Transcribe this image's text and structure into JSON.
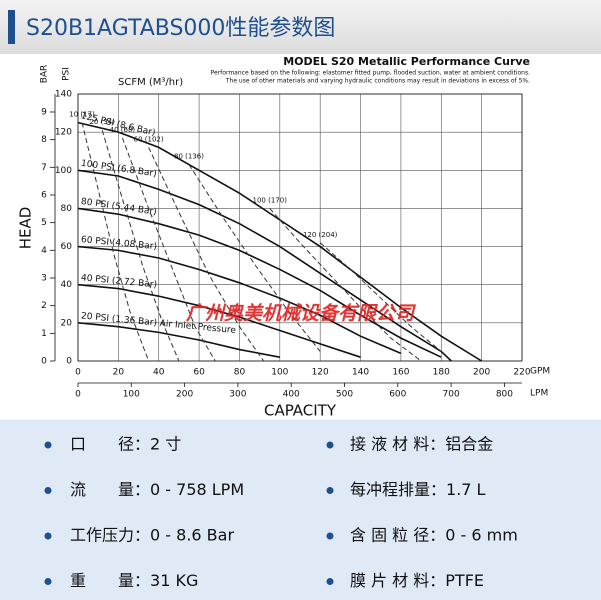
{
  "header": {
    "title": "S20B1AGTABS000性能参数图"
  },
  "chart_data": {
    "type": "line",
    "title": "MODEL S20 Metallic Performance Curve",
    "notes": [
      "Performance based on the following: elastomer fitted pump, flooded suction, water at ambient conditions.",
      "The use of other materials and varying hydraulic conditions may result in deviations in excess of 5%."
    ],
    "xlabel": "CAPACITY",
    "ylabel": "HEAD",
    "x_unit": "GPM",
    "x2_unit": "LPM",
    "y_unit": "PSI",
    "y2_unit": "BAR",
    "air_label": "SCFM (M³/hr)",
    "xlim": [
      0,
      220
    ],
    "xticks": [
      0,
      20,
      40,
      60,
      80,
      100,
      120,
      140,
      160,
      180,
      200,
      220
    ],
    "x2lim": [
      0,
      833
    ],
    "x2ticks": [
      0,
      100,
      200,
      300,
      400,
      500,
      600,
      700,
      800
    ],
    "ylim": [
      0,
      140
    ],
    "yticks": [
      0,
      20,
      40,
      60,
      80,
      100,
      120,
      140
    ],
    "y2lim": [
      0,
      9.65
    ],
    "y2ticks": [
      0,
      1,
      2,
      3,
      4,
      5,
      6,
      7,
      8,
      9
    ],
    "grid": true,
    "watermark": "广州奥美机械设备有限公司",
    "series": [
      {
        "name": "125 PSI (8.6 Bar)",
        "color": "#111111",
        "dash": false,
        "x": [
          0,
          20,
          40,
          60,
          80,
          100,
          120,
          140,
          160,
          180,
          200
        ],
        "values": [
          125,
          120,
          112,
          100,
          88,
          74,
          60,
          44,
          28,
          13,
          0
        ]
      },
      {
        "name": "100 PSI (6.8 Bar)",
        "color": "#111111",
        "dash": false,
        "x": [
          0,
          20,
          40,
          60,
          80,
          100,
          120,
          140,
          160,
          180,
          185
        ],
        "values": [
          100,
          97,
          90,
          82,
          72,
          60,
          46,
          32,
          18,
          5,
          0
        ]
      },
      {
        "name": "80 PSI (5.44 Bar)",
        "color": "#111111",
        "dash": false,
        "x": [
          0,
          20,
          40,
          60,
          80,
          100,
          120,
          140,
          160,
          180
        ],
        "values": [
          80,
          77,
          72,
          66,
          58,
          48,
          37,
          24,
          12,
          2
        ]
      },
      {
        "name": "60 PSI (4.08 Bar)",
        "color": "#111111",
        "dash": false,
        "x": [
          0,
          20,
          40,
          60,
          80,
          100,
          120,
          140,
          160
        ],
        "values": [
          60,
          58,
          54,
          48,
          41,
          33,
          24,
          13,
          4
        ]
      },
      {
        "name": "40 PSI (2.72 Bar)",
        "color": "#111111",
        "dash": false,
        "x": [
          0,
          20,
          40,
          60,
          80,
          100,
          120,
          140
        ],
        "values": [
          40,
          38,
          34,
          29,
          23,
          16,
          9,
          2
        ]
      },
      {
        "name": "20 PSI (1.36 Bar) Air Inlet Pressure",
        "color": "#111111",
        "dash": false,
        "x": [
          0,
          20,
          40,
          60,
          80,
          100
        ],
        "values": [
          20,
          18,
          15,
          11,
          6,
          2
        ]
      },
      {
        "name": "10 (17)",
        "color": "#333333",
        "dash": true,
        "x": [
          2,
          10,
          18,
          26,
          35
        ],
        "values": [
          125,
          90,
          55,
          25,
          0
        ]
      },
      {
        "name": "20 (34)",
        "color": "#333333",
        "dash": true,
        "x": [
          12,
          22,
          32,
          42,
          50
        ],
        "values": [
          121,
          85,
          50,
          20,
          0
        ]
      },
      {
        "name": "40 (68)",
        "color": "#333333",
        "dash": true,
        "x": [
          22,
          35,
          48,
          58,
          68
        ],
        "values": [
          117,
          80,
          45,
          18,
          0
        ]
      },
      {
        "name": "60 (102)",
        "color": "#333333",
        "dash": true,
        "x": [
          35,
          50,
          65,
          80,
          92
        ],
        "values": [
          112,
          78,
          45,
          18,
          0
        ]
      },
      {
        "name": "80 (136)",
        "color": "#333333",
        "dash": true,
        "x": [
          55,
          72,
          88,
          105,
          120
        ],
        "values": [
          103,
          75,
          50,
          25,
          5
        ]
      },
      {
        "name": "100 (170)",
        "color": "#333333",
        "dash": true,
        "x": [
          95,
          110,
          125,
          140,
          155,
          170
        ],
        "values": [
          80,
          62,
          45,
          28,
          12,
          0
        ]
      },
      {
        "name": "120 (204)",
        "color": "#333333",
        "dash": true,
        "x": [
          120,
          135,
          150,
          165,
          180
        ],
        "values": [
          62,
          48,
          33,
          18,
          5
        ]
      }
    ]
  },
  "specs": [
    {
      "label": "口　　径：",
      "value": "2 寸"
    },
    {
      "label": "接 液 材 料：",
      "value": "铝合金"
    },
    {
      "label": "流　　量：",
      "value": "0 - 758 LPM"
    },
    {
      "label": "每冲程排量：",
      "value": "1.7 L"
    },
    {
      "label": "工作压力：",
      "value": "0 - 8.6 Bar"
    },
    {
      "label": "含 固 粒 径：",
      "value": "0 - 6 mm"
    },
    {
      "label": "重　　量：",
      "value": "31 KG"
    },
    {
      "label": "膜 片 材 料：",
      "value": "PTFE"
    }
  ]
}
